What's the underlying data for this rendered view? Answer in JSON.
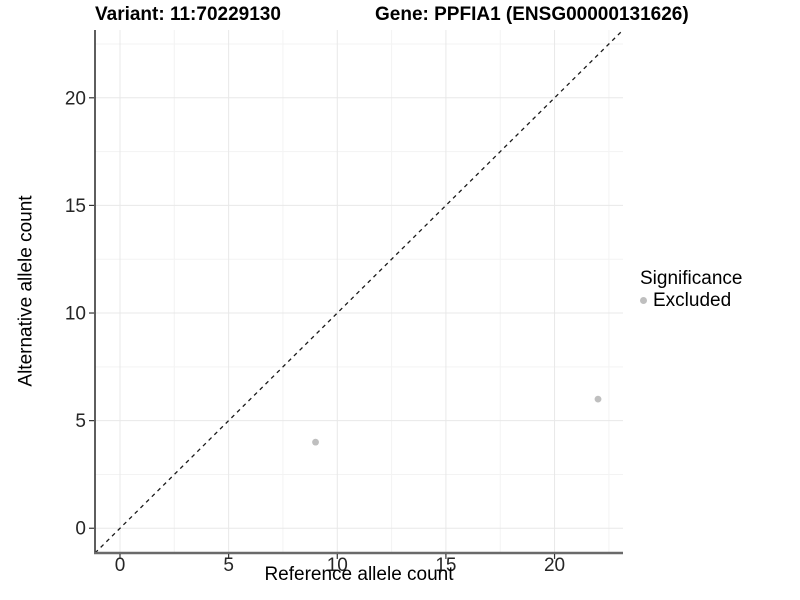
{
  "titles": {
    "left": "Variant: 11:70229130",
    "right": "Gene: PPFIA1 (ENSG00000131626)"
  },
  "chart_data": {
    "type": "scatter",
    "xlabel": "Reference allele count",
    "ylabel": "Alternative allele count",
    "xlim": [
      -1.15,
      23.15
    ],
    "ylim": [
      -1.15,
      23.15
    ],
    "x_major_ticks": [
      0,
      5,
      10,
      15,
      20
    ],
    "x_minor_ticks": [
      2.5,
      7.5,
      12.5,
      17.5,
      22.5
    ],
    "y_major_ticks": [
      0,
      5,
      10,
      15,
      20
    ],
    "y_minor_ticks": [
      2.5,
      7.5,
      12.5,
      17.5,
      22.5
    ],
    "grid": true,
    "series": [
      {
        "name": "Excluded",
        "color": "#bfbfbf",
        "points": [
          {
            "x": 9,
            "y": 4
          },
          {
            "x": 22,
            "y": 6
          }
        ]
      }
    ],
    "reference_line": {
      "type": "identity",
      "style": "dashed",
      "color": "#1a1a1a"
    },
    "legend": {
      "title": "Significance",
      "position": "right",
      "items": [
        {
          "label": "Excluded",
          "color": "#bfbfbf"
        }
      ]
    },
    "colors": {
      "background": "#ffffff",
      "grid_major": "#e8e8e8",
      "grid_minor": "#f3f3f3",
      "axis_y": "#1a1a1a",
      "axis_x": "#6a6a6a",
      "tick": "#333333",
      "tick_label": "#262626",
      "point": "#bfbfbf"
    }
  }
}
